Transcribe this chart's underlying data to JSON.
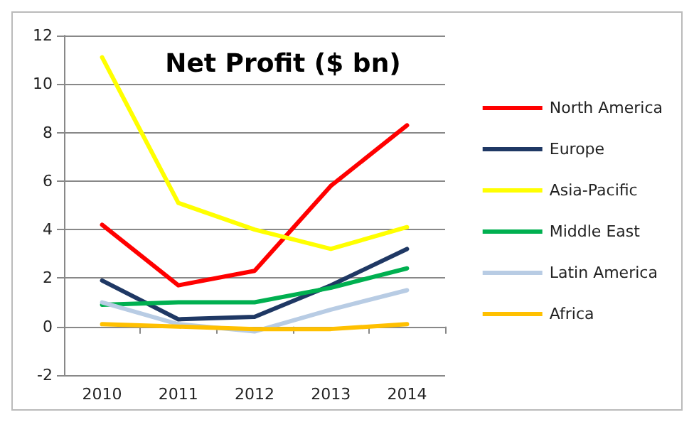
{
  "chart_data": {
    "type": "line",
    "title": "Net Profit ($ bn)",
    "categories": [
      "2010",
      "2011",
      "2012",
      "2013",
      "2014"
    ],
    "ylim": [
      -2,
      12
    ],
    "yticks": [
      -2,
      0,
      2,
      4,
      6,
      8,
      10,
      12
    ],
    "grid": "y",
    "legend": "right",
    "marker": "none",
    "line_style": "solid",
    "series": [
      {
        "name": "North America",
        "color": "#ff0000",
        "values": [
          4.2,
          1.7,
          2.3,
          5.8,
          8.3
        ]
      },
      {
        "name": "Europe",
        "color": "#1f3864",
        "values": [
          1.9,
          0.3,
          0.4,
          1.7,
          3.2
        ]
      },
      {
        "name": "Asia-Pacific",
        "color": "#ffff00",
        "values": [
          11.1,
          5.1,
          4.0,
          3.2,
          4.1
        ]
      },
      {
        "name": "Middle East",
        "color": "#00b050",
        "values": [
          0.9,
          1.0,
          1.0,
          1.6,
          2.4
        ]
      },
      {
        "name": "Latin America",
        "color": "#b8cce4",
        "values": [
          1.0,
          0.1,
          -0.2,
          0.7,
          1.5
        ]
      },
      {
        "name": "Africa",
        "color": "#ffc000",
        "values": [
          0.1,
          0.0,
          -0.1,
          -0.1,
          0.1
        ]
      }
    ]
  }
}
